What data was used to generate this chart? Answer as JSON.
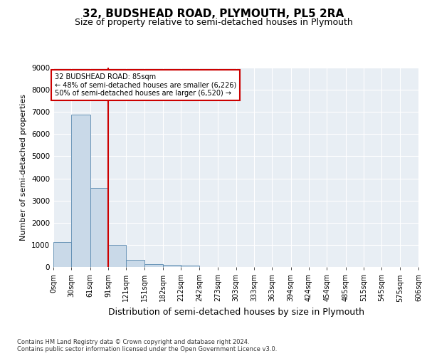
{
  "title": "32, BUDSHEAD ROAD, PLYMOUTH, PL5 2RA",
  "subtitle": "Size of property relative to semi-detached houses in Plymouth",
  "xlabel": "Distribution of semi-detached houses by size in Plymouth",
  "ylabel": "Number of semi-detached properties",
  "bar_values": [
    1130,
    6880,
    3560,
    1000,
    320,
    140,
    100,
    80,
    0,
    0,
    0,
    0,
    0,
    0,
    0,
    0,
    0,
    0,
    0,
    0
  ],
  "bin_edges": [
    0,
    30,
    61,
    91,
    121,
    151,
    182,
    212,
    242,
    273,
    303,
    333,
    363,
    394,
    424,
    454,
    485,
    515,
    545,
    575,
    606
  ],
  "bin_labels": [
    "0sqm",
    "30sqm",
    "61sqm",
    "91sqm",
    "121sqm",
    "151sqm",
    "182sqm",
    "212sqm",
    "242sqm",
    "273sqm",
    "303sqm",
    "333sqm",
    "363sqm",
    "394sqm",
    "424sqm",
    "454sqm",
    "485sqm",
    "515sqm",
    "545sqm",
    "575sqm",
    "606sqm"
  ],
  "bar_color": "#c9d9e8",
  "bar_edge_color": "#5a8ab0",
  "vline_x": 91,
  "vline_color": "#cc0000",
  "annotation_text": "32 BUDSHEAD ROAD: 85sqm\n← 48% of semi-detached houses are smaller (6,226)\n50% of semi-detached houses are larger (6,520) →",
  "annotation_box_color": "#ffffff",
  "annotation_box_edge": "#cc0000",
  "ylim": [
    0,
    9000
  ],
  "yticks": [
    0,
    1000,
    2000,
    3000,
    4000,
    5000,
    6000,
    7000,
    8000,
    9000
  ],
  "plot_bg_color": "#e8eef4",
  "footer_text": "Contains HM Land Registry data © Crown copyright and database right 2024.\nContains public sector information licensed under the Open Government Licence v3.0.",
  "title_fontsize": 11,
  "subtitle_fontsize": 9,
  "ylabel_fontsize": 8,
  "xlabel_fontsize": 9,
  "tick_fontsize": 7
}
